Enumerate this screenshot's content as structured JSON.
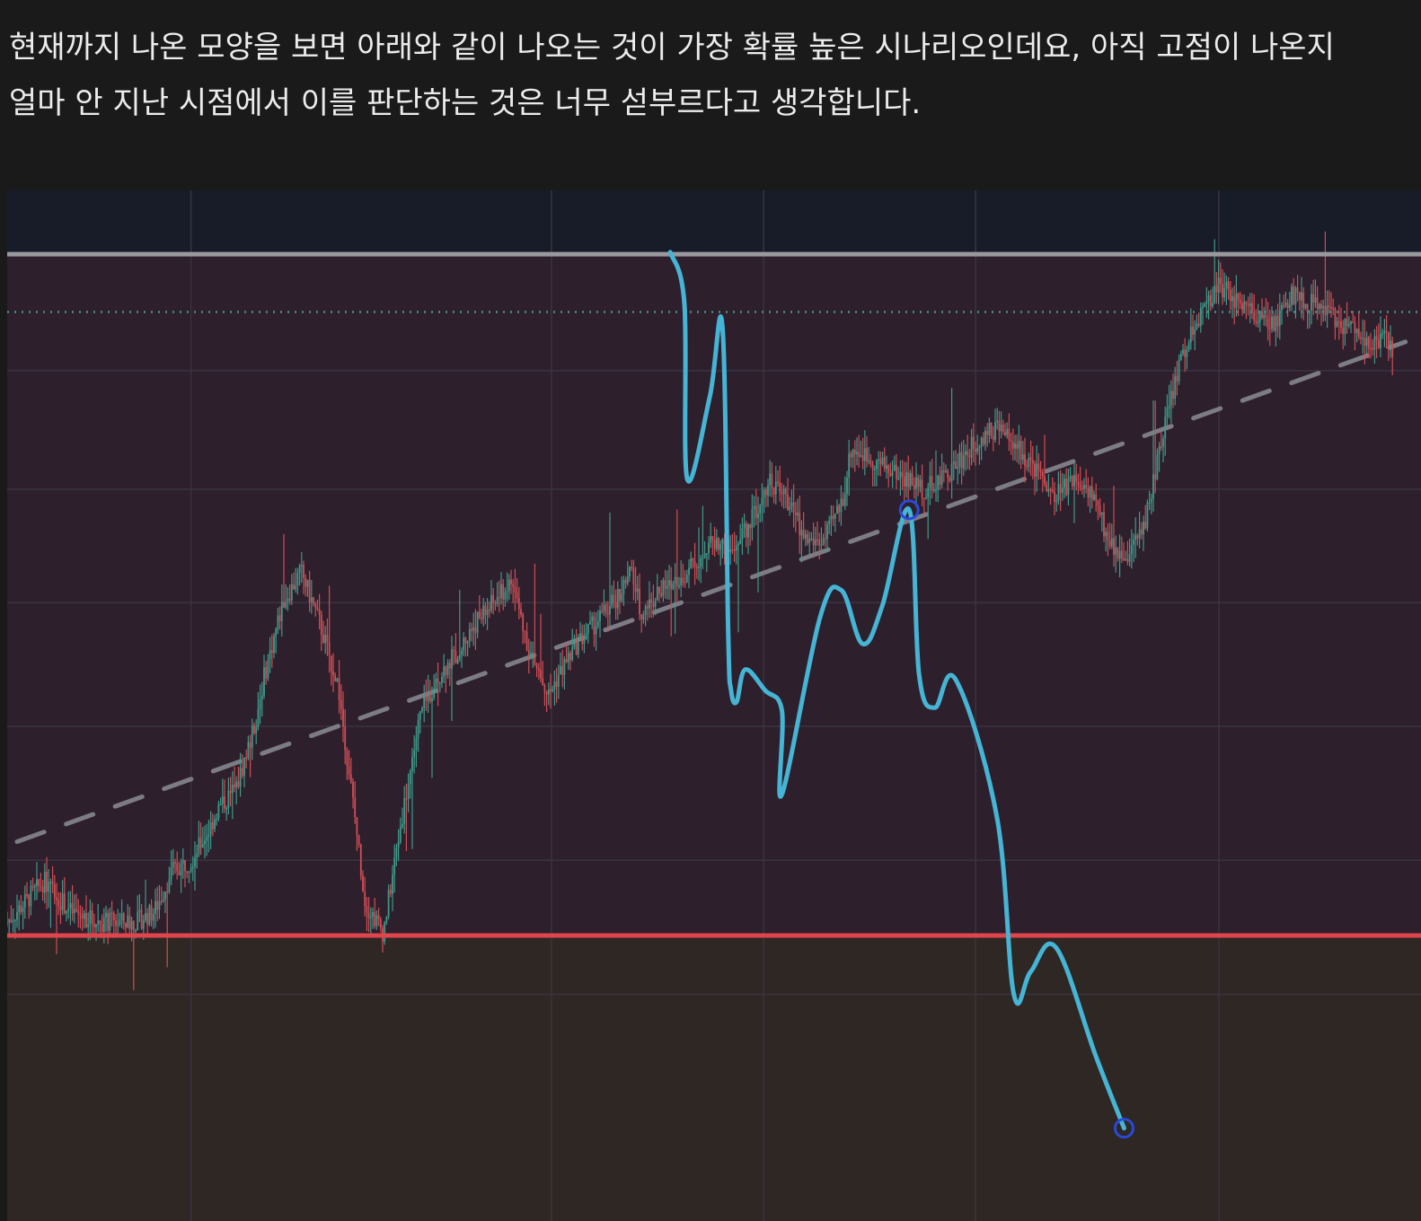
{
  "post": {
    "line1": " 현재까지 나온 모양을 보면 아래와 같이 나오는 것이 가장 확률 높은 시나리오인데요, 아직 고점이 나온지",
    "line2": "얼마 안 지난 시점에서 이를 판단하는 것은 너무 섣부르다고 생각합니다."
  },
  "colors": {
    "page_bg": "#1a1a1a",
    "zone_top": "#181c28",
    "zone_mid": "#2d1f2c",
    "zone_bottom": "#2e2723",
    "resistance": "#9a99a0",
    "support": "#e0444d",
    "dotted": "#4a8f88",
    "trendline": "#7c7c84",
    "projection": "#46b4d4",
    "marker": "#2a49d8",
    "candle_up": "#3f9a8a",
    "candle_down": "#d04e55",
    "grid": "#3a3340"
  },
  "chart_data": {
    "type": "line",
    "grid": true,
    "zones": [
      {
        "name": "top",
        "from": 1.0,
        "to": 0.938
      },
      {
        "name": "middle",
        "from": 0.938,
        "to": 0.277
      },
      {
        "name": "bottom",
        "from": 0.277,
        "to": 0.0
      }
    ],
    "horizontal_levels": [
      {
        "name": "resistance",
        "value": 0.938,
        "style": "solid"
      },
      {
        "name": "dotted-level",
        "value": 0.882,
        "style": "dotted"
      },
      {
        "name": "support",
        "value": 0.277,
        "style": "solid"
      }
    ],
    "trendline": {
      "style": "dashed",
      "points": [
        [
          0.007,
          0.368
        ],
        [
          0.989,
          0.853
        ]
      ]
    },
    "price_series": {
      "style": "candles",
      "x": [
        0.0,
        0.013,
        0.026,
        0.045,
        0.065,
        0.081,
        0.091,
        0.104,
        0.117,
        0.13,
        0.143,
        0.149,
        0.162,
        0.175,
        0.182,
        0.195,
        0.208,
        0.221,
        0.234,
        0.247,
        0.253,
        0.266,
        0.279,
        0.292,
        0.305,
        0.318,
        0.331,
        0.344,
        0.357,
        0.37,
        0.383,
        0.39,
        0.403,
        0.416,
        0.429,
        0.442,
        0.448,
        0.461,
        0.474,
        0.487,
        0.5,
        0.513,
        0.526,
        0.539,
        0.552,
        0.565,
        0.578,
        0.591,
        0.597,
        0.61,
        0.623,
        0.636,
        0.649,
        0.662,
        0.675,
        0.688,
        0.701,
        0.714,
        0.727,
        0.74,
        0.753,
        0.766,
        0.779,
        0.792,
        0.805,
        0.818,
        0.831,
        0.844,
        0.857,
        0.87,
        0.883,
        0.896,
        0.909,
        0.922,
        0.935,
        0.942,
        0.955,
        0.968,
        0.974,
        0.981
      ],
      "y": [
        0.29,
        0.31,
        0.33,
        0.3,
        0.29,
        0.29,
        0.29,
        0.3,
        0.34,
        0.35,
        0.38,
        0.4,
        0.42,
        0.48,
        0.53,
        0.6,
        0.63,
        0.58,
        0.52,
        0.38,
        0.31,
        0.28,
        0.39,
        0.49,
        0.53,
        0.55,
        0.58,
        0.6,
        0.62,
        0.55,
        0.51,
        0.53,
        0.56,
        0.58,
        0.6,
        0.63,
        0.59,
        0.61,
        0.62,
        0.64,
        0.66,
        0.65,
        0.68,
        0.72,
        0.7,
        0.66,
        0.66,
        0.7,
        0.75,
        0.74,
        0.73,
        0.72,
        0.71,
        0.72,
        0.74,
        0.76,
        0.77,
        0.75,
        0.73,
        0.7,
        0.72,
        0.71,
        0.66,
        0.64,
        0.68,
        0.77,
        0.84,
        0.88,
        0.91,
        0.89,
        0.88,
        0.87,
        0.9,
        0.89,
        0.88,
        0.87,
        0.86,
        0.85,
        0.86,
        0.84
      ]
    },
    "projection_path": {
      "points": [
        [
          0.469,
          0.94
        ],
        [
          0.479,
          0.89
        ],
        [
          0.481,
          0.72
        ],
        [
          0.497,
          0.8
        ],
        [
          0.506,
          0.866
        ],
        [
          0.51,
          0.57
        ],
        [
          0.512,
          0.515
        ],
        [
          0.516,
          0.504
        ],
        [
          0.522,
          0.535
        ],
        [
          0.536,
          0.515
        ],
        [
          0.548,
          0.495
        ],
        [
          0.548,
          0.414
        ],
        [
          0.575,
          0.586
        ],
        [
          0.59,
          0.612
        ],
        [
          0.605,
          0.56
        ],
        [
          0.619,
          0.597
        ],
        [
          0.638,
          0.69
        ],
        [
          0.645,
          0.53
        ],
        [
          0.656,
          0.498
        ],
        [
          0.671,
          0.525
        ],
        [
          0.7,
          0.392
        ],
        [
          0.712,
          0.22
        ],
        [
          0.724,
          0.242
        ],
        [
          0.742,
          0.265
        ],
        [
          0.77,
          0.16
        ],
        [
          0.79,
          0.09
        ]
      ],
      "markers": [
        [
          0.638,
          0.69
        ],
        [
          0.79,
          0.09
        ]
      ]
    }
  }
}
